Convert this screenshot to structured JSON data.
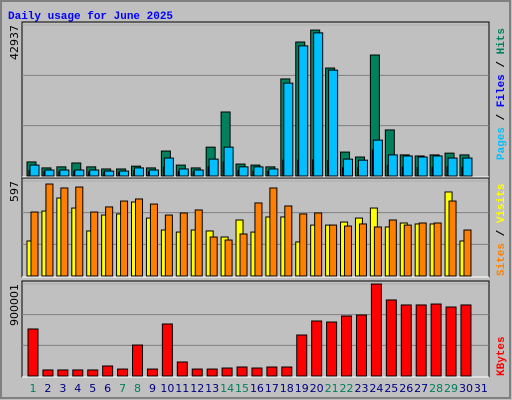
{
  "title": "Daily usage for June 2025",
  "chart_data": [
    {
      "type": "bar",
      "ylim": [
        0,
        42937
      ],
      "yticks": [
        42937
      ],
      "grid": true,
      "series": [
        {
          "name": "Hits",
          "color": "#00805c",
          "values": [
            4000,
            2300,
            2600,
            3700,
            2600,
            2000,
            2000,
            2800,
            2300,
            7100,
            3100,
            2300,
            8200,
            18200,
            3400,
            3100,
            2600,
            27600,
            38100,
            41500,
            30700,
            6800,
            5400,
            34400,
            13100,
            6000,
            5700,
            6000,
            6500,
            6000,
            null
          ]
        },
        {
          "name": "Files",
          "color": "#0000ff",
          "values": [
            1500,
            1200,
            1200,
            1300,
            1200,
            1100,
            1100,
            1400,
            1200,
            2500,
            1300,
            1200,
            2600,
            4000,
            1500,
            1400,
            1300,
            4500,
            4500,
            4600,
            4400,
            2400,
            2300,
            7400,
            3000,
            2500,
            2400,
            2500,
            2600,
            2500,
            null
          ]
        },
        {
          "name": "Pages",
          "color": "#00c0ff",
          "values": [
            3100,
            1700,
            1700,
            1700,
            1700,
            1400,
            1400,
            2300,
            1700,
            5100,
            2000,
            1700,
            4800,
            8200,
            2600,
            2600,
            2000,
            26400,
            37000,
            40700,
            30100,
            4800,
            4500,
            10200,
            6000,
            5700,
            5400,
            5700,
            5100,
            5100,
            null
          ]
        }
      ]
    },
    {
      "type": "bar",
      "ylim": [
        0,
        597
      ],
      "yticks": [
        597
      ],
      "grid": true,
      "series": [
        {
          "name": "Visits",
          "color": "#ffff00",
          "values": [
            220,
            408,
            490,
            427,
            283,
            383,
            390,
            465,
            364,
            289,
            276,
            289,
            283,
            245,
            352,
            276,
            371,
            371,
            214,
            320,
            320,
            339,
            364,
            427,
            308,
            333,
            327,
            327,
            528,
            220,
            null
          ]
        },
        {
          "name": "Sites",
          "color": "#ff8000",
          "values": [
            402,
            578,
            553,
            559,
            402,
            434,
            471,
            484,
            452,
            383,
            396,
            415,
            245,
            226,
            264,
            459,
            553,
            440,
            390,
            396,
            320,
            314,
            327,
            308,
            352,
            320,
            333,
            333,
            471,
            289,
            null
          ]
        }
      ]
    },
    {
      "type": "bar",
      "ylim": [
        0,
        900001
      ],
      "yticks": [
        900001
      ],
      "grid": true,
      "categories": [
        "1",
        "2",
        "3",
        "4",
        "5",
        "6",
        "7",
        "8",
        "9",
        "10",
        "11",
        "12",
        "13",
        "14",
        "15",
        "16",
        "17",
        "18",
        "19",
        "20",
        "21",
        "22",
        "23",
        "24",
        "25",
        "26",
        "27",
        "28",
        "29",
        "30",
        "31"
      ],
      "category_colors": [
        "#00805c",
        "#000080",
        "#000080",
        "#000080",
        "#000080",
        "#000080",
        "#00805c",
        "#00805c",
        "#000080",
        "#000080",
        "#000080",
        "#000080",
        "#000080",
        "#00805c",
        "#00805c",
        "#000080",
        "#000080",
        "#000080",
        "#000080",
        "#000080",
        "#00805c",
        "#00805c",
        "#000080",
        "#000080",
        "#000080",
        "#000080",
        "#000080",
        "#00805c",
        "#00805c",
        "#000080",
        "#000080"
      ],
      "series": [
        {
          "name": "KBytes",
          "color": "#ff0000",
          "values": [
            460000,
            59000,
            59000,
            59000,
            59000,
            98000,
            68000,
            303000,
            68000,
            509000,
            137000,
            68000,
            68000,
            78000,
            88000,
            78000,
            88000,
            88000,
            401000,
            538000,
            528000,
            587000,
            597000,
            900001,
            744000,
            695000,
            695000,
            704000,
            675000,
            695000,
            null
          ]
        }
      ]
    }
  ]
}
